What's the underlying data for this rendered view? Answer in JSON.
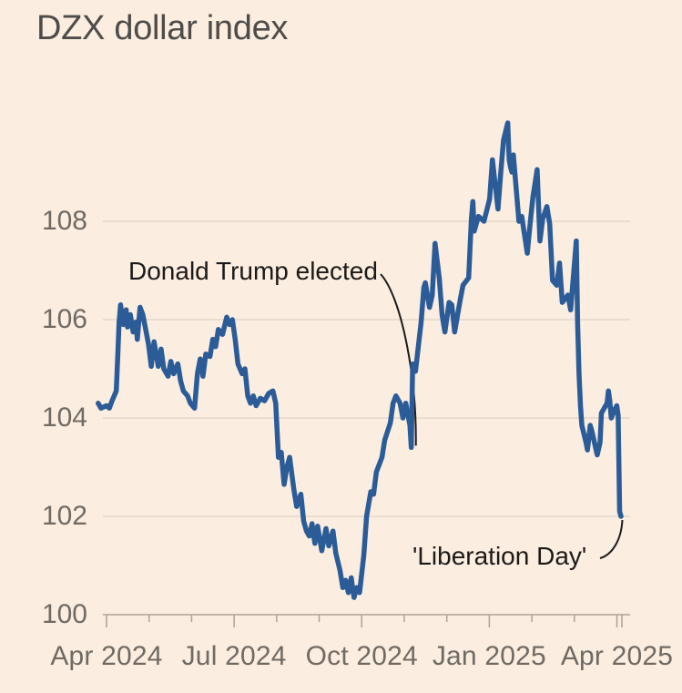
{
  "header": {
    "title": "DZX dollar index"
  },
  "colors": {
    "background": "#fbede0",
    "line": "#2b5c97",
    "gridline": "#e9ddd1",
    "axis": "#ada396",
    "tick_label": "#6f6a63",
    "title_text": "#4e4c49",
    "annotation_text": "#1c1a19"
  },
  "chart_data": {
    "type": "line",
    "title": "DZX dollar index",
    "xlabel": "",
    "ylabel": "",
    "grid": "horizontal-only",
    "legend": "none",
    "x_start_date": "2024-04-01",
    "x_end_date": "2025-04-04",
    "ylim": [
      100,
      110.6
    ],
    "y_ticks": [
      108,
      106,
      104,
      102,
      100
    ],
    "x_major_ticks": [
      {
        "label": "Apr 2024",
        "months_from_start": 0
      },
      {
        "label": "Jul 2024",
        "months_from_start": 3
      },
      {
        "label": "Oct 2024",
        "months_from_start": 6
      },
      {
        "label": "Jan 2025",
        "months_from_start": 9
      },
      {
        "label": "Apr 2025",
        "months_from_start": 12
      }
    ],
    "x_minor_tick_every_months": 1,
    "annotations": [
      {
        "label": "Donald Trump elected",
        "target_date": "2024-11-05",
        "target_value": 103.4
      },
      {
        "label": "'Liberation Day'",
        "target_date": "2025-04-03",
        "target_value": 102.0
      }
    ],
    "series": [
      {
        "name": "DZX dollar index",
        "points": [
          [
            "2024-03-26",
            104.3
          ],
          [
            "2024-03-28",
            104.2
          ],
          [
            "2024-04-01",
            104.25
          ],
          [
            "2024-04-03",
            104.2
          ],
          [
            "2024-04-05",
            104.35
          ],
          [
            "2024-04-08",
            104.55
          ],
          [
            "2024-04-09",
            105.25
          ],
          [
            "2024-04-10",
            105.95
          ],
          [
            "2024-04-11",
            106.3
          ],
          [
            "2024-04-13",
            105.9
          ],
          [
            "2024-04-15",
            106.2
          ],
          [
            "2024-04-16",
            105.85
          ],
          [
            "2024-04-18",
            106.1
          ],
          [
            "2024-04-20",
            105.75
          ],
          [
            "2024-04-22",
            105.95
          ],
          [
            "2024-04-23",
            105.6
          ],
          [
            "2024-04-25",
            106.25
          ],
          [
            "2024-04-27",
            106.1
          ],
          [
            "2024-05-01",
            105.5
          ],
          [
            "2024-05-03",
            105.05
          ],
          [
            "2024-05-05",
            105.55
          ],
          [
            "2024-05-08",
            105.05
          ],
          [
            "2024-05-10",
            105.4
          ],
          [
            "2024-05-12",
            105.0
          ],
          [
            "2024-05-15",
            104.85
          ],
          [
            "2024-05-17",
            105.15
          ],
          [
            "2024-05-19",
            104.9
          ],
          [
            "2024-05-22",
            105.1
          ],
          [
            "2024-05-24",
            104.75
          ],
          [
            "2024-05-26",
            104.55
          ],
          [
            "2024-05-29",
            104.45
          ],
          [
            "2024-05-31",
            104.3
          ],
          [
            "2024-06-03",
            104.2
          ],
          [
            "2024-06-05",
            104.9
          ],
          [
            "2024-06-07",
            105.2
          ],
          [
            "2024-06-09",
            104.85
          ],
          [
            "2024-06-11",
            105.3
          ],
          [
            "2024-06-14",
            105.25
          ],
          [
            "2024-06-16",
            105.6
          ],
          [
            "2024-06-18",
            105.45
          ],
          [
            "2024-06-20",
            105.8
          ],
          [
            "2024-06-23",
            105.7
          ],
          [
            "2024-06-26",
            106.05
          ],
          [
            "2024-06-28",
            105.9
          ],
          [
            "2024-06-30",
            106.0
          ],
          [
            "2024-07-02",
            105.6
          ],
          [
            "2024-07-04",
            105.1
          ],
          [
            "2024-07-07",
            104.9
          ],
          [
            "2024-07-09",
            105.0
          ],
          [
            "2024-07-11",
            104.45
          ],
          [
            "2024-07-13",
            104.3
          ],
          [
            "2024-07-15",
            104.45
          ],
          [
            "2024-07-17",
            104.25
          ],
          [
            "2024-07-20",
            104.4
          ],
          [
            "2024-07-23",
            104.35
          ],
          [
            "2024-07-26",
            104.5
          ],
          [
            "2024-07-29",
            104.55
          ],
          [
            "2024-07-31",
            104.3
          ],
          [
            "2024-08-02",
            103.2
          ],
          [
            "2024-08-04",
            103.3
          ],
          [
            "2024-08-06",
            102.65
          ],
          [
            "2024-08-08",
            103.0
          ],
          [
            "2024-08-10",
            103.2
          ],
          [
            "2024-08-13",
            102.55
          ],
          [
            "2024-08-15",
            102.2
          ],
          [
            "2024-08-18",
            102.45
          ],
          [
            "2024-08-20",
            101.9
          ],
          [
            "2024-08-22",
            101.7
          ],
          [
            "2024-08-24",
            101.6
          ],
          [
            "2024-08-26",
            101.85
          ],
          [
            "2024-08-28",
            101.45
          ],
          [
            "2024-08-30",
            101.8
          ],
          [
            "2024-09-02",
            101.3
          ],
          [
            "2024-09-05",
            101.75
          ],
          [
            "2024-09-07",
            101.4
          ],
          [
            "2024-09-10",
            101.7
          ],
          [
            "2024-09-12",
            101.25
          ],
          [
            "2024-09-15",
            100.9
          ],
          [
            "2024-09-17",
            100.55
          ],
          [
            "2024-09-19",
            100.7
          ],
          [
            "2024-09-21",
            100.45
          ],
          [
            "2024-09-23",
            100.75
          ],
          [
            "2024-09-25",
            100.35
          ],
          [
            "2024-09-27",
            100.55
          ],
          [
            "2024-09-29",
            100.45
          ],
          [
            "2024-10-02",
            101.2
          ],
          [
            "2024-10-04",
            102.0
          ],
          [
            "2024-10-07",
            102.5
          ],
          [
            "2024-10-09",
            102.45
          ],
          [
            "2024-10-11",
            102.9
          ],
          [
            "2024-10-15",
            103.2
          ],
          [
            "2024-10-17",
            103.55
          ],
          [
            "2024-10-21",
            103.9
          ],
          [
            "2024-10-23",
            104.3
          ],
          [
            "2024-10-25",
            104.45
          ],
          [
            "2024-10-28",
            104.3
          ],
          [
            "2024-10-30",
            104.0
          ],
          [
            "2024-11-01",
            104.3
          ],
          [
            "2024-11-04",
            103.85
          ],
          [
            "2024-11-05",
            103.4
          ],
          [
            "2024-11-06",
            105.1
          ],
          [
            "2024-11-08",
            104.95
          ],
          [
            "2024-11-12",
            105.95
          ],
          [
            "2024-11-14",
            106.65
          ],
          [
            "2024-11-15",
            106.75
          ],
          [
            "2024-11-18",
            106.25
          ],
          [
            "2024-11-20",
            106.5
          ],
          [
            "2024-11-22",
            107.55
          ],
          [
            "2024-11-25",
            106.85
          ],
          [
            "2024-11-27",
            106.1
          ],
          [
            "2024-11-29",
            105.75
          ],
          [
            "2024-12-02",
            106.35
          ],
          [
            "2024-12-04",
            106.3
          ],
          [
            "2024-12-06",
            105.75
          ],
          [
            "2024-12-10",
            106.4
          ],
          [
            "2024-12-12",
            106.7
          ],
          [
            "2024-12-16",
            106.85
          ],
          [
            "2024-12-18",
            108.05
          ],
          [
            "2024-12-19",
            108.4
          ],
          [
            "2024-12-20",
            107.8
          ],
          [
            "2024-12-23",
            108.1
          ],
          [
            "2024-12-27",
            108.0
          ],
          [
            "2024-12-31",
            108.45
          ],
          [
            "2025-01-02",
            109.25
          ],
          [
            "2025-01-06",
            108.25
          ],
          [
            "2025-01-08",
            109.0
          ],
          [
            "2025-01-10",
            109.65
          ],
          [
            "2025-01-13",
            110.0
          ],
          [
            "2025-01-14",
            109.25
          ],
          [
            "2025-01-15",
            109.1
          ],
          [
            "2025-01-16",
            109.0
          ],
          [
            "2025-01-17",
            109.35
          ],
          [
            "2025-01-21",
            108.0
          ],
          [
            "2025-01-23",
            108.1
          ],
          [
            "2025-01-27",
            107.35
          ],
          [
            "2025-01-29",
            107.95
          ],
          [
            "2025-01-31",
            108.5
          ],
          [
            "2025-02-03",
            109.05
          ],
          [
            "2025-02-05",
            107.6
          ],
          [
            "2025-02-07",
            108.05
          ],
          [
            "2025-02-10",
            108.3
          ],
          [
            "2025-02-12",
            107.95
          ],
          [
            "2025-02-14",
            106.8
          ],
          [
            "2025-02-17",
            106.7
          ],
          [
            "2025-02-19",
            107.15
          ],
          [
            "2025-02-21",
            106.35
          ],
          [
            "2025-02-25",
            106.5
          ],
          [
            "2025-02-27",
            106.2
          ],
          [
            "2025-03-03",
            107.6
          ],
          [
            "2025-03-04",
            105.9
          ],
          [
            "2025-03-05",
            104.9
          ],
          [
            "2025-03-06",
            104.25
          ],
          [
            "2025-03-07",
            103.85
          ],
          [
            "2025-03-10",
            103.5
          ],
          [
            "2025-03-11",
            103.35
          ],
          [
            "2025-03-13",
            103.85
          ],
          [
            "2025-03-14",
            103.75
          ],
          [
            "2025-03-18",
            103.25
          ],
          [
            "2025-03-20",
            103.5
          ],
          [
            "2025-03-21",
            104.1
          ],
          [
            "2025-03-25",
            104.3
          ],
          [
            "2025-03-26",
            104.55
          ],
          [
            "2025-03-27",
            104.35
          ],
          [
            "2025-03-28",
            104.0
          ],
          [
            "2025-03-31",
            104.2
          ],
          [
            "2025-04-01",
            104.25
          ],
          [
            "2025-04-02",
            104.05
          ],
          [
            "2025-04-03",
            102.1
          ],
          [
            "2025-04-04",
            102.0
          ]
        ]
      }
    ]
  }
}
